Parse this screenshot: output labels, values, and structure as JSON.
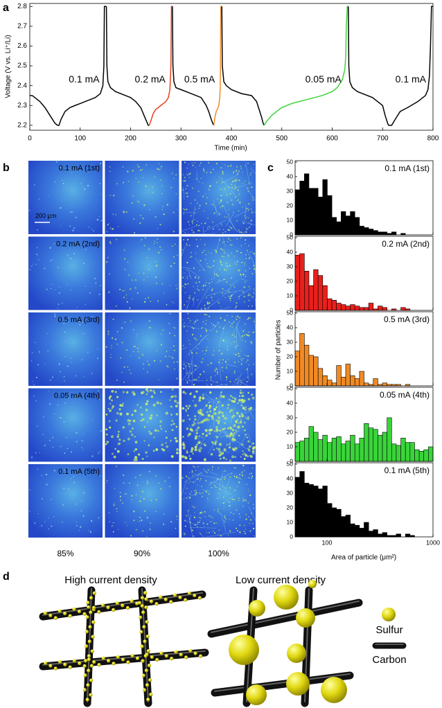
{
  "chart_data": [
    {
      "panel": "a",
      "type": "line",
      "x_label": "Time (min)",
      "y_label": "Voltage (V vs. Li⁺/Li)",
      "xlim": [
        0,
        800
      ],
      "xticks": [
        0,
        100,
        200,
        300,
        400,
        500,
        600,
        700,
        800
      ],
      "ylim": [
        2.175,
        2.815
      ],
      "yticks": [
        2.2,
        2.3,
        2.4,
        2.5,
        2.6,
        2.7,
        2.8
      ],
      "series": [
        {
          "name": "0.1 mA",
          "color": "#000000",
          "x": [
            0,
            5,
            10,
            20,
            30,
            40,
            50,
            55,
            58,
            62,
            70,
            80,
            90,
            100,
            110,
            120,
            130,
            140,
            145,
            147,
            148,
            152
          ],
          "values": [
            2.35,
            2.35,
            2.34,
            2.32,
            2.29,
            2.25,
            2.21,
            2.2,
            2.2,
            2.23,
            2.27,
            2.29,
            2.3,
            2.31,
            2.32,
            2.33,
            2.34,
            2.36,
            2.4,
            2.5,
            2.8,
            2.8
          ]
        },
        {
          "color": "#000000",
          "x": [
            152,
            153,
            155,
            160,
            170,
            180,
            190,
            200,
            210,
            220,
            225,
            230,
            235,
            237
          ],
          "values": [
            2.8,
            2.5,
            2.42,
            2.39,
            2.37,
            2.36,
            2.35,
            2.34,
            2.32,
            2.29,
            2.26,
            2.23,
            2.2,
            2.2
          ]
        },
        {
          "name": "0.2 mA",
          "color": "#e8401c",
          "x": [
            237,
            240,
            245,
            250,
            260,
            270,
            275,
            278,
            280,
            281,
            283
          ],
          "values": [
            2.2,
            2.22,
            2.26,
            2.28,
            2.3,
            2.32,
            2.34,
            2.38,
            2.5,
            2.8,
            2.8
          ]
        },
        {
          "color": "#000000",
          "x": [
            283,
            284,
            286,
            290,
            300,
            320,
            340,
            350,
            355,
            360,
            363,
            365
          ],
          "values": [
            2.8,
            2.5,
            2.42,
            2.39,
            2.38,
            2.36,
            2.34,
            2.3,
            2.27,
            2.23,
            2.21,
            2.2
          ]
        },
        {
          "name": "0.5 mA",
          "color": "#f08a24",
          "x": [
            365,
            368,
            370,
            372,
            375,
            377,
            378,
            379,
            381
          ],
          "values": [
            2.2,
            2.25,
            2.27,
            2.28,
            2.3,
            2.34,
            2.4,
            2.8,
            2.8
          ]
        },
        {
          "color": "#000000",
          "x": [
            381,
            382,
            385,
            390,
            400,
            420,
            440,
            450,
            455,
            460,
            463,
            465
          ],
          "values": [
            2.8,
            2.5,
            2.42,
            2.4,
            2.38,
            2.36,
            2.35,
            2.32,
            2.28,
            2.24,
            2.21,
            2.2
          ]
        },
        {
          "name": "0.05 mA",
          "color": "#3ad43a",
          "x": [
            465,
            470,
            480,
            490,
            500,
            520,
            550,
            580,
            600,
            610,
            620,
            625,
            627,
            628,
            630,
            632
          ],
          "values": [
            2.2,
            2.22,
            2.25,
            2.27,
            2.29,
            2.31,
            2.33,
            2.35,
            2.37,
            2.39,
            2.43,
            2.48,
            2.55,
            2.7,
            2.8,
            2.8
          ]
        },
        {
          "name": "0.1 mA",
          "color": "#000000",
          "x": [
            632,
            633,
            635,
            640,
            650,
            660,
            680,
            700,
            705,
            710,
            712,
            715,
            718,
            725,
            735,
            750,
            770,
            785,
            790,
            793,
            795,
            797,
            800
          ],
          "values": [
            2.8,
            2.5,
            2.42,
            2.39,
            2.37,
            2.36,
            2.34,
            2.3,
            2.25,
            2.21,
            2.2,
            2.2,
            2.2,
            2.23,
            2.27,
            2.29,
            2.32,
            2.35,
            2.38,
            2.45,
            2.6,
            2.8,
            2.8
          ]
        }
      ]
    },
    {
      "panel": "b",
      "type": "image-grid",
      "rows": [
        "0.1 mA (1st)",
        "0.2 mA (2nd)",
        "0.5 mA (3rd)",
        "0.05 mA (4th)",
        "0.1 mA (5th)"
      ],
      "columns": [
        "85%",
        "90%",
        "100%"
      ],
      "scale_bar": "200 μm"
    },
    {
      "panel": "c",
      "type": "histogram",
      "x_label": "Area of particle (μm²)",
      "y_label": "Number of particles",
      "log_x": true,
      "xlim": [
        50,
        1000
      ],
      "xticks": [
        100,
        1000
      ],
      "ylim": [
        0,
        50
      ],
      "yticks": [
        0,
        10,
        20,
        30,
        40,
        50
      ],
      "bins": [
        50,
        55.3,
        61.1,
        67.5,
        74.6,
        82.4,
        91,
        100.6,
        111.2,
        122.8,
        135.7,
        150,
        165.7,
        183.1,
        202.4,
        223.6,
        247.1,
        273,
        301.7,
        333.4,
        368.4,
        407.1,
        449.9,
        497.1,
        549.3,
        607,
        670.7,
        741.2,
        819,
        905,
        1000
      ],
      "series": [
        {
          "name": "0.1 mA (1st)",
          "color": "#000000",
          "values": [
            31,
            37,
            42,
            32,
            32,
            26,
            38,
            27,
            12,
            9,
            16,
            13,
            16,
            12,
            6,
            5,
            4,
            3,
            2,
            2,
            1,
            2,
            0,
            1,
            0,
            0,
            0,
            0,
            0,
            0
          ]
        },
        {
          "name": "0.2 mA (2nd)",
          "color": "#e8201c",
          "values": [
            38,
            39,
            27,
            17,
            28,
            24,
            17,
            8,
            7,
            5,
            4,
            3,
            4,
            3,
            2,
            2,
            5,
            1,
            3,
            2,
            0,
            1,
            0,
            2,
            1,
            0,
            0,
            0,
            0,
            0
          ]
        },
        {
          "name": "0.5 mA (3rd)",
          "color": "#f08a24",
          "values": [
            24,
            36,
            28,
            21,
            20,
            12,
            7,
            4,
            2,
            14,
            6,
            15,
            7,
            5,
            10,
            2,
            1,
            5,
            1,
            2,
            1,
            1,
            1,
            0,
            1,
            0,
            0,
            0,
            0,
            0
          ]
        },
        {
          "name": "0.05 mA (4th)",
          "color": "#3ad43a",
          "values": [
            13,
            14,
            16,
            24,
            20,
            15,
            18,
            13,
            16,
            17,
            12,
            14,
            18,
            12,
            16,
            26,
            23,
            22,
            18,
            20,
            30,
            12,
            11,
            16,
            13,
            13,
            8,
            7,
            8,
            10
          ]
        },
        {
          "name": "0.1 mA (5th)",
          "color": "#000000",
          "values": [
            41,
            45,
            37,
            36,
            35,
            33,
            35,
            23,
            20,
            19,
            14,
            15,
            9,
            8,
            6,
            10,
            4,
            5,
            2,
            3,
            1,
            1,
            2,
            0,
            2,
            1,
            0,
            0,
            0,
            0
          ]
        }
      ]
    }
  ],
  "diagram": {
    "panel": "d",
    "left_title": "High current density",
    "right_title": "Low current density",
    "legend": [
      "Sulfur",
      "Carbon"
    ]
  }
}
